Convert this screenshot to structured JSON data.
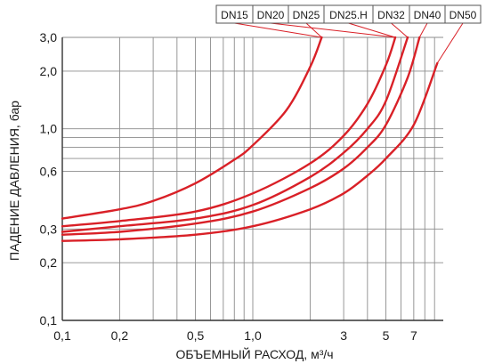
{
  "chart_data": {
    "type": "line",
    "title": "",
    "xlabel": "ОБЪЕМНЫЙ РАСХОД, м³/ч",
    "ylabel": "ПАДЕНИЕ ДАВЛЕНИЯ, бар",
    "xscale": "log",
    "yscale": "log",
    "xlim": [
      0.1,
      10
    ],
    "ylim": [
      0.1,
      3.0
    ],
    "grid": true,
    "legend_position": "top",
    "line_color": "#d92027",
    "x_ticks": [
      {
        "value": 0.1,
        "label": "0,1"
      },
      {
        "value": 0.2,
        "label": "0,2"
      },
      {
        "value": 0.5,
        "label": "0,5"
      },
      {
        "value": 1.0,
        "label": "1,0"
      },
      {
        "value": 3,
        "label": "3"
      },
      {
        "value": 5,
        "label": "5"
      },
      {
        "value": 7,
        "label": "7"
      }
    ],
    "y_ticks": [
      {
        "value": 0.1,
        "label": "0,1"
      },
      {
        "value": 0.2,
        "label": "0,2"
      },
      {
        "value": 0.3,
        "label": "0,3"
      },
      {
        "value": 0.6,
        "label": "0,6"
      },
      {
        "value": 1.0,
        "label": "1,0"
      },
      {
        "value": 2.0,
        "label": "2,0"
      },
      {
        "value": 3.0,
        "label": "3,0"
      }
    ],
    "x_grid": [
      0.1,
      0.2,
      0.3,
      0.4,
      0.5,
      0.6,
      0.7,
      0.8,
      0.9,
      1,
      2,
      3,
      4,
      5,
      6,
      7,
      8,
      9
    ],
    "y_grid": [
      0.2,
      0.3,
      0.6,
      0.7,
      0.8,
      0.9,
      1.0,
      2.0,
      3.0
    ],
    "series": [
      {
        "name": "DN15",
        "x": [
          0.1,
          0.2,
          0.3,
          0.5,
          0.8,
          1.0,
          1.5,
          2.0,
          2.3
        ],
        "y": [
          0.34,
          0.38,
          0.42,
          0.52,
          0.69,
          0.82,
          1.25,
          2.1,
          3.0
        ]
      },
      {
        "name": "DN20",
        "x": [
          0.1,
          0.2,
          0.5,
          1.0,
          2.0,
          3.0,
          4.0,
          5.0,
          5.6
        ],
        "y": [
          0.31,
          0.33,
          0.37,
          0.46,
          0.66,
          0.92,
          1.35,
          2.15,
          3.0
        ]
      },
      {
        "name": "DN25",
        "x": [
          0.1,
          0.2,
          0.5,
          1.0,
          2.0,
          3.0,
          4.0,
          5.0,
          6.5
        ],
        "y": [
          0.29,
          0.31,
          0.34,
          0.4,
          0.56,
          0.75,
          1.0,
          1.4,
          3.0
        ]
      },
      {
        "name": "DN25.H",
        "x": [
          0.1,
          0.2,
          0.5,
          1.0,
          2.0,
          3.0,
          4.0,
          5.0,
          6.5,
          7.5
        ],
        "y": [
          0.28,
          0.29,
          0.32,
          0.37,
          0.49,
          0.62,
          0.8,
          1.05,
          1.85,
          3.0
        ]
      },
      {
        "name": "DN32 / DN40 / DN50",
        "x": [
          0.1,
          0.2,
          0.5,
          1.0,
          2.0,
          3.0,
          4.0,
          5.0,
          7.0,
          9.3
        ],
        "y": [
          0.26,
          0.265,
          0.28,
          0.31,
          0.38,
          0.46,
          0.57,
          0.7,
          1.05,
          2.2
        ]
      }
    ],
    "legend_entries": [
      "DN15",
      "DN20",
      "DN25",
      "DN25.H",
      "DN32",
      "DN40",
      "DN50"
    ],
    "legend_connectors": [
      {
        "label": "DN15",
        "series": 0
      },
      {
        "label": "DN20",
        "series": 1
      },
      {
        "label": "DN25",
        "series": 0
      },
      {
        "label": "DN25.H",
        "series": 1
      },
      {
        "label": "DN32",
        "series": 2
      },
      {
        "label": "DN40",
        "series": 3
      },
      {
        "label": "DN50",
        "series": 4
      }
    ]
  }
}
